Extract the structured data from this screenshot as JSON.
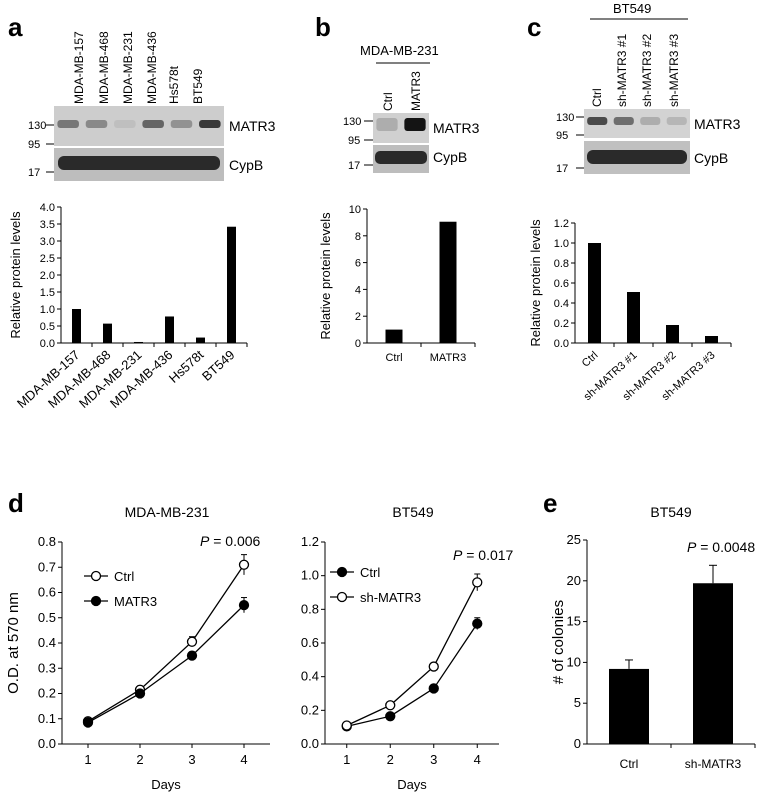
{
  "panels": {
    "a": {
      "letter": "a",
      "lanes": [
        "MDA-MB-157",
        "MDA-MB-468",
        "MDA-MB-231",
        "MDA-MB-436",
        "Hs578t",
        "BT549"
      ],
      "blot": {
        "markers": [
          "130",
          "95",
          "17"
        ],
        "bands": [
          "MATR3",
          "CypB"
        ],
        "matr3_intensity": [
          0.45,
          0.35,
          0.05,
          0.55,
          0.3,
          0.8
        ]
      }
    },
    "b": {
      "letter": "b",
      "group_label": "MDA-MB-231",
      "lanes": [
        "Ctrl",
        "MATR3"
      ],
      "blot": {
        "markers": [
          "130",
          "95",
          "17"
        ],
        "bands": [
          "MATR3",
          "CypB"
        ],
        "matr3_intensity": [
          0.15,
          1.0
        ]
      }
    },
    "c": {
      "letter": "c",
      "group_label": "BT549",
      "lanes": [
        "Ctrl",
        "sh-MATR3 #1",
        "sh-MATR3 #2",
        "sh-MATR3 #3"
      ],
      "blot": {
        "markers": [
          "130",
          "95",
          "17"
        ],
        "bands": [
          "MATR3",
          "CypB"
        ],
        "matr3_intensity": [
          0.7,
          0.5,
          0.15,
          0.1
        ]
      }
    },
    "d": {
      "letter": "d"
    },
    "e": {
      "letter": "e"
    }
  },
  "chart_data": [
    {
      "id": "a",
      "type": "bar",
      "categories": [
        "MDA-MB-157",
        "MDA-MB-468",
        "MDA-MB-231",
        "MDA-MB-436",
        "Hs578t",
        "BT549"
      ],
      "values": [
        1.0,
        0.57,
        0.03,
        0.78,
        0.16,
        3.42
      ],
      "ylabel": "Relative protein levels",
      "ylim": [
        0,
        4
      ],
      "yticks": [
        "0.0",
        "0.5",
        "1.0",
        "1.5",
        "2.0",
        "2.5",
        "3.0",
        "3.5",
        "4.0"
      ],
      "color": "#000000"
    },
    {
      "id": "b",
      "type": "bar",
      "categories": [
        "Ctrl",
        "MATR3"
      ],
      "values": [
        1.0,
        9.05
      ],
      "ylabel": "Relative protein levels",
      "ylim": [
        0,
        10
      ],
      "yticks": [
        "0",
        "2",
        "4",
        "6",
        "8",
        "10"
      ],
      "color": "#000000"
    },
    {
      "id": "c",
      "type": "bar",
      "categories": [
        "Ctrl",
        "sh-MATR3 #1",
        "sh-MATR3 #2",
        "sh-MATR3 #3"
      ],
      "values": [
        1.0,
        0.51,
        0.18,
        0.07
      ],
      "ylabel": "Relative protein levels",
      "ylim": [
        0,
        1.2
      ],
      "yticks": [
        "0.0",
        "0.2",
        "0.4",
        "0.6",
        "0.8",
        "1.0",
        "1.2"
      ],
      "color": "#000000"
    },
    {
      "id": "d1",
      "type": "line",
      "title": "MDA-MB-231",
      "annotation": {
        "italic": "P",
        "text": " = 0.006"
      },
      "x": [
        1,
        2,
        3,
        4
      ],
      "xlabel": "Days",
      "ylabel": "O.D. at 570 nm",
      "ylim": [
        0,
        0.8
      ],
      "yticks": [
        "0.0",
        "0.1",
        "0.2",
        "0.3",
        "0.4",
        "0.5",
        "0.6",
        "0.7",
        "0.8"
      ],
      "xticks": [
        "1",
        "2",
        "3",
        "4"
      ],
      "legend_position": "top-left",
      "series": [
        {
          "name": "Ctrl",
          "marker": "open",
          "values": [
            0.09,
            0.215,
            0.405,
            0.71
          ],
          "errors": [
            0.005,
            0.015,
            0.02,
            0.04
          ]
        },
        {
          "name": "MATR3",
          "marker": "filled",
          "values": [
            0.085,
            0.2,
            0.35,
            0.55
          ],
          "errors": [
            0.005,
            0.01,
            0.015,
            0.03
          ]
        }
      ]
    },
    {
      "id": "d2",
      "type": "line",
      "title": "BT549",
      "annotation": {
        "italic": "P",
        "text": " = 0.017"
      },
      "x": [
        1,
        2,
        3,
        4
      ],
      "xlabel": "Days",
      "ylabel": "",
      "ylim": [
        0,
        1.2
      ],
      "yticks": [
        "0.0",
        "0.2",
        "0.4",
        "0.6",
        "0.8",
        "1.0",
        "1.2"
      ],
      "xticks": [
        "1",
        "2",
        "3",
        "4"
      ],
      "legend_position": "top-left",
      "series": [
        {
          "name": "Ctrl",
          "marker": "filled",
          "values": [
            0.105,
            0.165,
            0.33,
            0.715
          ],
          "errors": [
            0.005,
            0.01,
            0.02,
            0.035
          ]
        },
        {
          "name": "sh-MATR3",
          "marker": "open",
          "values": [
            0.11,
            0.23,
            0.46,
            0.96
          ],
          "errors": [
            0.005,
            0.01,
            0.02,
            0.05
          ]
        }
      ]
    },
    {
      "id": "e",
      "type": "bar",
      "title": "BT549",
      "annotation": {
        "italic": "P",
        "text": " = 0.0048"
      },
      "categories": [
        "Ctrl",
        "sh-MATR3"
      ],
      "values": [
        9.2,
        19.7
      ],
      "errors": [
        1.1,
        2.2
      ],
      "ylabel": "# of colonies",
      "ylim": [
        0,
        25
      ],
      "yticks": [
        "0",
        "5",
        "10",
        "15",
        "20",
        "25"
      ],
      "color": "#000000"
    }
  ]
}
